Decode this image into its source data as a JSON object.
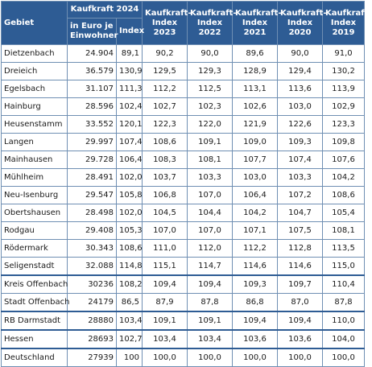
{
  "headers": {
    "gebiet": "Gebiet",
    "kk2024": "Kaufkraft 2024",
    "euro": "in Euro je Einwohner",
    "index": "Index",
    "idx2023": "Kaufkraft-Index 2023",
    "idx2022": "Kaufkraft-Index 2022",
    "idx2021": "Kaufkraft-Index 2021",
    "idx2020": "Kaufkraft-Index 2020",
    "idx2019": "Kaufkraft-Index 2019"
  },
  "rows": [
    {
      "name": "Dietzenbach",
      "euro": "24.904",
      "index": "89,1",
      "y2023": "90,2",
      "y2022": "90,0",
      "y2021": "89,6",
      "y2020": "90,0",
      "y2019": "91,0"
    },
    {
      "name": "Dreieich",
      "euro": "36.579",
      "index": "130,9",
      "y2023": "129,5",
      "y2022": "129,3",
      "y2021": "128,9",
      "y2020": "129,4",
      "y2019": "130,2"
    },
    {
      "name": "Egelsbach",
      "euro": "31.107",
      "index": "111,3",
      "y2023": "112,2",
      "y2022": "112,5",
      "y2021": "113,1",
      "y2020": "113,6",
      "y2019": "113,9"
    },
    {
      "name": "Hainburg",
      "euro": "28.596",
      "index": "102,4",
      "y2023": "102,7",
      "y2022": "102,3",
      "y2021": "102,6",
      "y2020": "103,0",
      "y2019": "102,9"
    },
    {
      "name": "Heusenstamm",
      "euro": "33.552",
      "index": "120,1",
      "y2023": "122,3",
      "y2022": "122,0",
      "y2021": "121,9",
      "y2020": "122,6",
      "y2019": "123,3"
    },
    {
      "name": "Langen",
      "euro": "29.997",
      "index": "107,4",
      "y2023": "108,6",
      "y2022": "109,1",
      "y2021": "109,0",
      "y2020": "109,3",
      "y2019": "109,8"
    },
    {
      "name": "Mainhausen",
      "euro": "29.728",
      "index": "106,4",
      "y2023": "108,3",
      "y2022": "108,1",
      "y2021": "107,7",
      "y2020": "107,4",
      "y2019": "107,6"
    },
    {
      "name": "Mühlheim",
      "euro": "28.491",
      "index": "102,0",
      "y2023": "103,7",
      "y2022": "103,3",
      "y2021": "103,0",
      "y2020": "103,3",
      "y2019": "104,2"
    },
    {
      "name": "Neu-Isenburg",
      "euro": "29.547",
      "index": "105,8",
      "y2023": "106,8",
      "y2022": "107,0",
      "y2021": "106,4",
      "y2020": "107,2",
      "y2019": "108,6"
    },
    {
      "name": "Obertshausen",
      "euro": "28.498",
      "index": "102,0",
      "y2023": "104,5",
      "y2022": "104,4",
      "y2021": "104,2",
      "y2020": "104,7",
      "y2019": "105,4"
    },
    {
      "name": "Rodgau",
      "euro": "29.408",
      "index": "105,3",
      "y2023": "107,0",
      "y2022": "107,0",
      "y2021": "107,1",
      "y2020": "107,5",
      "y2019": "108,1"
    },
    {
      "name": "Rödermark",
      "euro": "30.343",
      "index": "108,6",
      "y2023": "111,0",
      "y2022": "112,0",
      "y2021": "112,2",
      "y2020": "112,8",
      "y2019": "113,5"
    },
    {
      "name": "Seligenstadt",
      "euro": "32.088",
      "index": "114,8",
      "y2023": "115,1",
      "y2022": "114,7",
      "y2021": "114,6",
      "y2020": "114,6",
      "y2019": "115,0"
    },
    {
      "name": "Kreis Offenbach",
      "euro": "30236",
      "index": "108,2",
      "y2023": "109,4",
      "y2022": "109,4",
      "y2021": "109,3",
      "y2020": "109,7",
      "y2019": "110,4",
      "gap": true
    },
    {
      "name": "Stadt Offenbach",
      "euro": "24179",
      "index": "86,5",
      "y2023": "87,9",
      "y2022": "87,8",
      "y2021": "86,8",
      "y2020": "87,0",
      "y2019": "87,8"
    },
    {
      "name": "RB Darmstadt",
      "euro": "28880",
      "index": "103,4",
      "y2023": "109,1",
      "y2022": "109,1",
      "y2021": "109,4",
      "y2020": "109,4",
      "y2019": "110,0",
      "gap": true
    },
    {
      "name": "Hessen",
      "euro": "28693",
      "index": "102,7",
      "y2023": "103,4",
      "y2022": "103,4",
      "y2021": "103,6",
      "y2020": "103,6",
      "y2019": "104,0",
      "gap": true
    },
    {
      "name": "Deutschland",
      "euro": "27939",
      "index": "100",
      "y2023": "100,0",
      "y2022": "100,0",
      "y2021": "100,0",
      "y2020": "100,0",
      "y2019": "100,0",
      "gap": true
    }
  ]
}
